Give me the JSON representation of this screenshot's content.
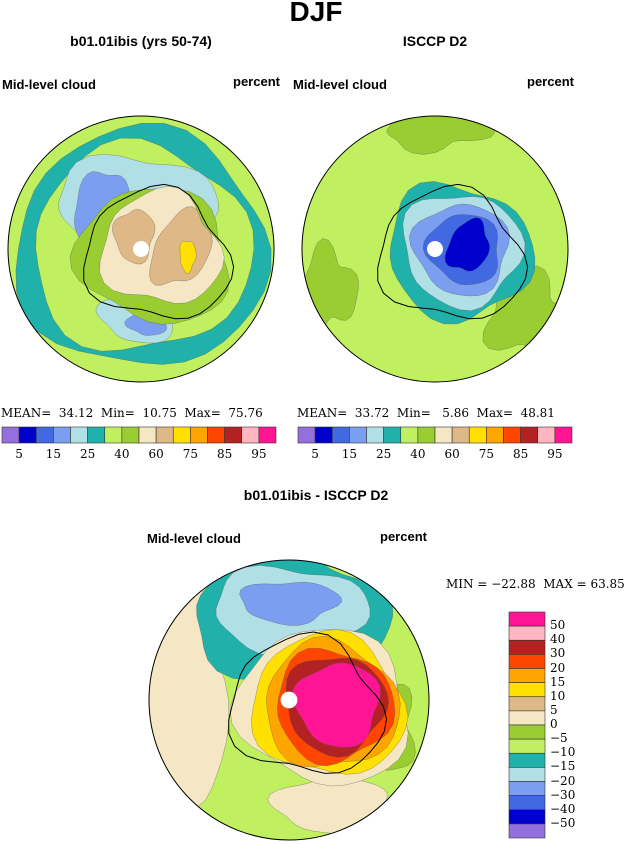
{
  "title": "DJF",
  "panels": [
    {
      "title": "b01.01ibis (yrs 50-74)",
      "left_label": "Mid-level cloud",
      "right_label": "percent",
      "stats": {
        "mean_label": "MEAN=",
        "mean": "34.12",
        "min_label": "Min=",
        "min": "10.75",
        "max_label": "Max=",
        "max": "75.76"
      }
    },
    {
      "title": "ISCCP D2",
      "left_label": "Mid-level cloud",
      "right_label": "percent",
      "stats": {
        "mean_label": "MEAN=",
        "mean": "33.72",
        "min_label": "Min=",
        "min": "5.86",
        "max_label": "Max=",
        "max": "48.81"
      }
    },
    {
      "title": "b01.01ibis - ISCCP D2",
      "left_label": "Mid-level cloud",
      "right_label": "percent",
      "stats": {
        "min_text": "MIN = −22.88",
        "max_text": "MAX =   63.85"
      }
    }
  ],
  "chart_data": {
    "type": "heatmap",
    "projection": "south polar stereographic",
    "colors": [
      "#9370DB",
      "#0000CD",
      "#4169E1",
      "#7B9EF0",
      "#B0E0E6",
      "#20B2AA",
      "#C0F060",
      "#9ACD32",
      "#F5E6C4",
      "#DEB887",
      "#FFE000",
      "#FFA500",
      "#FF4500",
      "#B22222",
      "#FFB6C1",
      "#FF1493"
    ],
    "abs_colorbar_labels": [
      "5",
      "15",
      "25",
      "40",
      "60",
      "75",
      "85",
      "95"
    ],
    "diff_colorbar_labels": [
      "50",
      "40",
      "30",
      "20",
      "15",
      "10",
      "5",
      "0",
      "−5",
      "−10",
      "−15",
      "−20",
      "−30",
      "−40",
      "−50"
    ]
  }
}
